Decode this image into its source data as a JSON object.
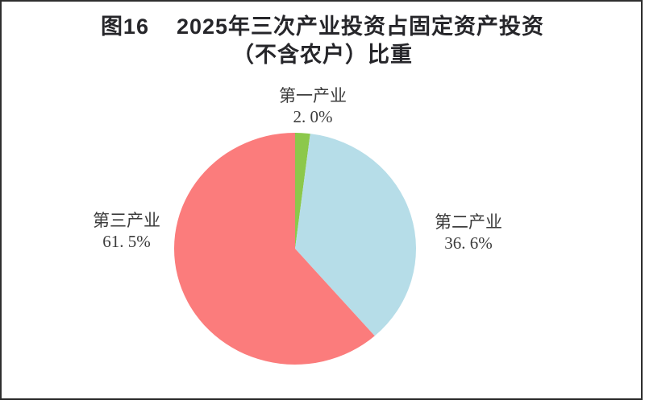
{
  "page": {
    "background_color": "#ffffff",
    "frame_color": "#2e2e2e"
  },
  "figure": {
    "number": "图16",
    "title_line1": "2025年三次产业投资占固定资产投资",
    "title_line2": "（不含农户）比重"
  },
  "chart_data": {
    "type": "pie",
    "title": "图16 2025年三次产业投资占固定资产投资（不含农户）比重",
    "start_angle_deg": 0,
    "direction": "clockwise",
    "legend_position": "none",
    "categories": [
      "第一产业",
      "第二产业",
      "第三产业"
    ],
    "values": [
      2.0,
      36.6,
      61.5
    ],
    "slices": [
      {
        "key": "primary-industry",
        "label": "第一产业",
        "value": 2.0,
        "value_label": "2. 0%",
        "color": "#8CC84B"
      },
      {
        "key": "secondary-industry",
        "label": "第二产业",
        "value": 36.6,
        "value_label": "36. 6%",
        "color": "#B6DDE8"
      },
      {
        "key": "tertiary-industry",
        "label": "第三产业",
        "value": 61.5,
        "value_label": "61. 5%",
        "color": "#FB7C7C"
      }
    ]
  }
}
